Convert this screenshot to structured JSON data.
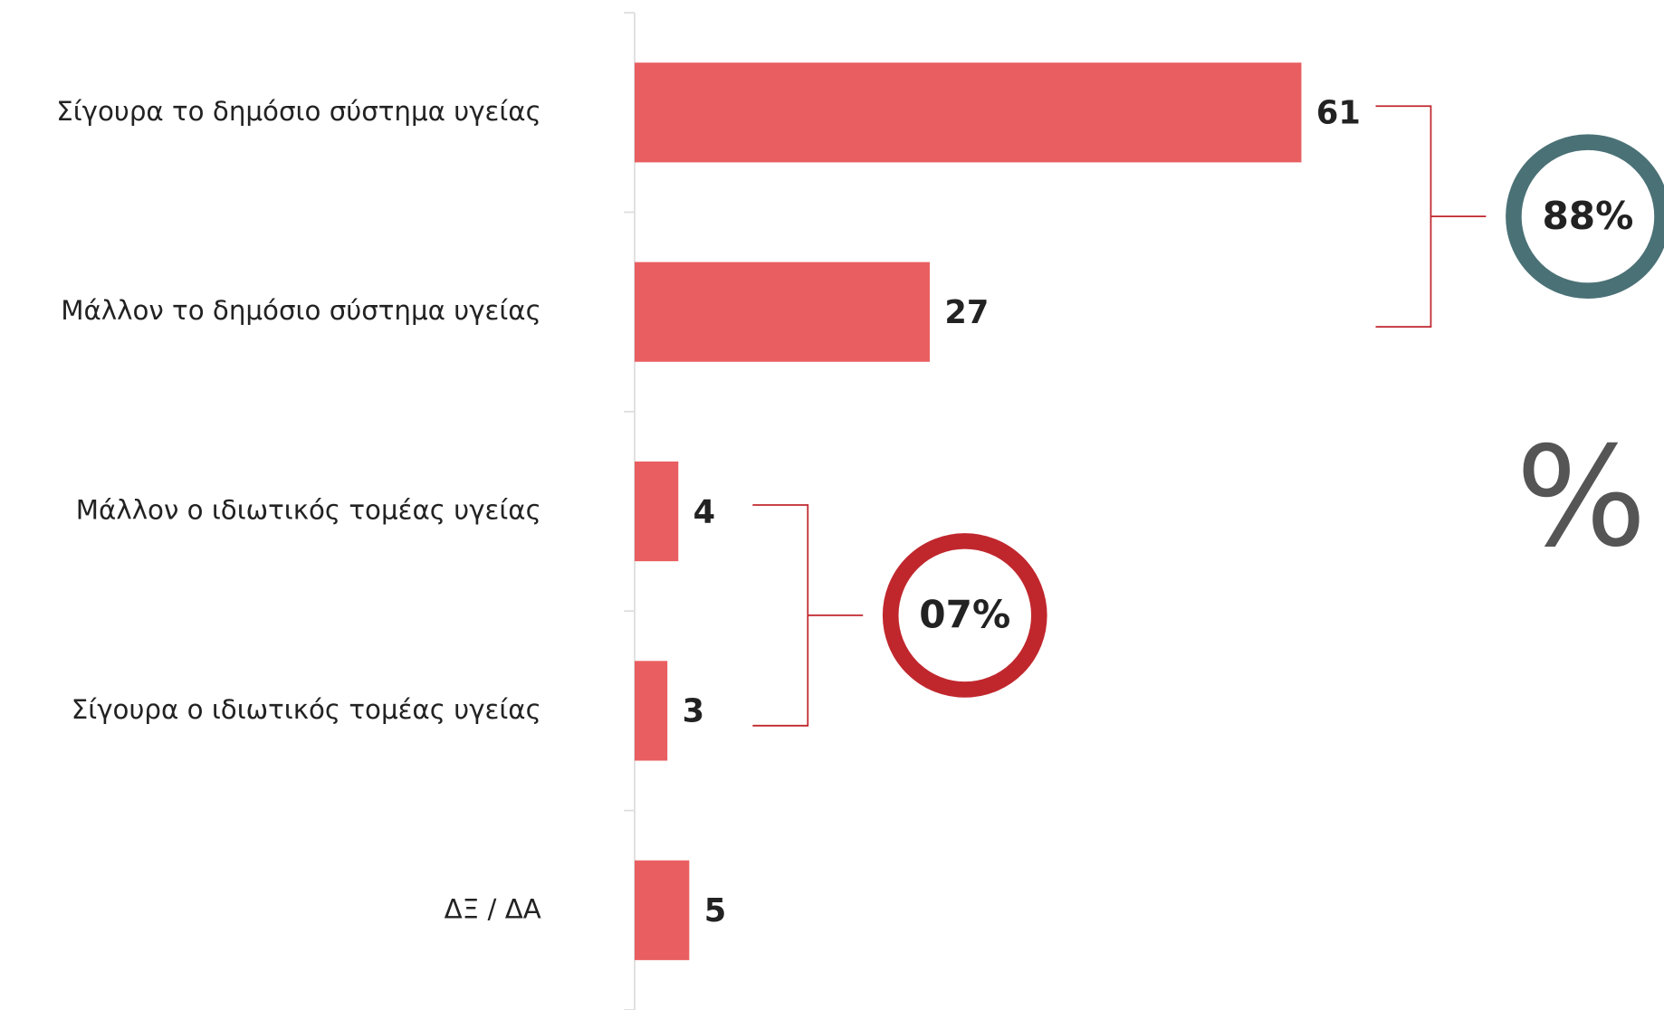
{
  "chart_data": {
    "type": "bar",
    "orientation": "horizontal",
    "categories": [
      "Σίγουρα το δημόσιο σύστημα υγείας",
      "Μάλλον το δημόσιο σύστημα υγείας",
      "Μάλλον ο ιδιωτικός τομέας υγείας",
      "Σίγουρα ο ιδιωτικός τομέας υγείας",
      "ΔΞ / ΔΑ"
    ],
    "values": [
      61,
      27,
      4,
      3,
      5
    ],
    "color": "#e95e60",
    "xlim": [
      0,
      100
    ],
    "annotations": [
      {
        "text": "88%",
        "color": "#4a7176"
      },
      {
        "text": "07%",
        "color": "#c0272d"
      }
    ],
    "unit_symbol": "%"
  }
}
